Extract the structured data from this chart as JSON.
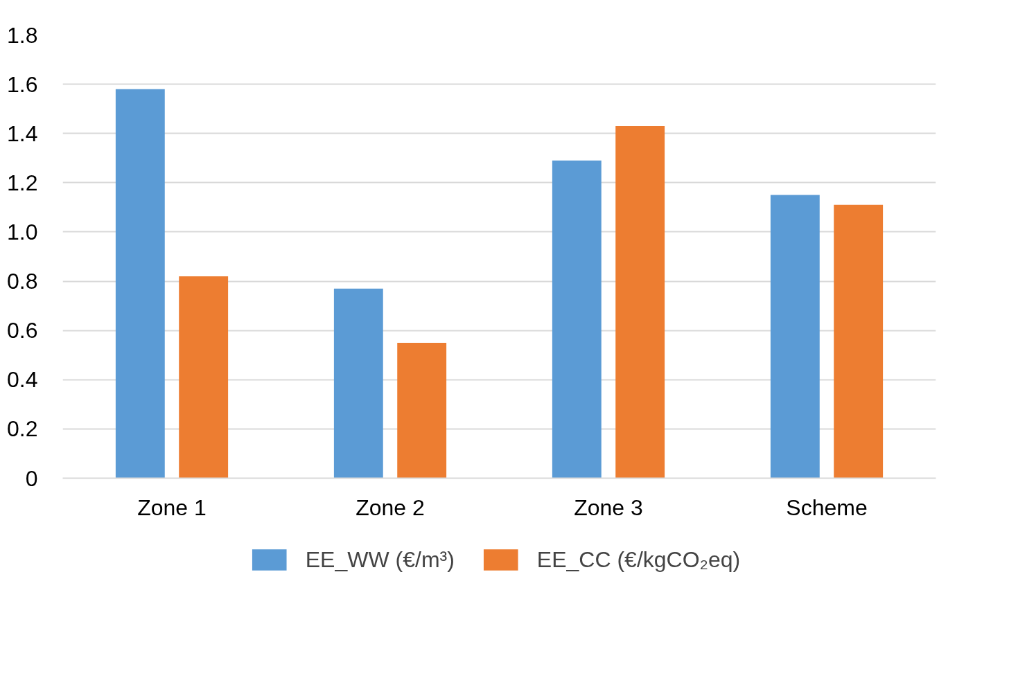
{
  "chart_data": {
    "type": "bar",
    "categories": [
      "Zone 1",
      "Zone 2",
      "Zone 3",
      "Scheme"
    ],
    "series": [
      {
        "name": "EE_WW (€/m³)",
        "color": "#5b9bd5",
        "values": [
          1.58,
          0.77,
          1.29,
          1.15
        ]
      },
      {
        "name": "EE_CC (€/kgCO₂eq)",
        "color": "#ed7d31",
        "values": [
          0.82,
          0.55,
          1.43,
          1.11
        ]
      }
    ],
    "ylim": [
      0,
      1.8
    ],
    "yticks": [
      0,
      0.2,
      0.4,
      0.6,
      0.8,
      {
        "value": 1,
        "label": "1.0"
      },
      1.2,
      1.4,
      1.6,
      1.8
    ],
    "grid": "y",
    "legend": "bottom"
  }
}
